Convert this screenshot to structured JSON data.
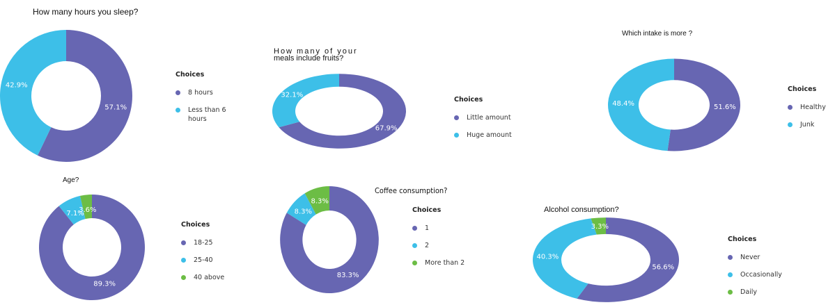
{
  "colors": {
    "purple": "#6766b2",
    "cyan": "#3dbfe8",
    "green": "#6cbd45"
  },
  "chart_data": [
    {
      "type": "pie",
      "title": "How many hours you sleep?",
      "legend_title": "Choices",
      "labels": [
        "8 hours",
        "Less than 6 hours"
      ],
      "values": [
        57.1,
        42.9
      ],
      "value_labels": [
        "57.1%",
        "42.9%"
      ],
      "colors": [
        "#6766b2",
        "#3dbfe8"
      ],
      "legend": "right"
    },
    {
      "type": "pie",
      "title": "How many of your",
      "title_line2": "meals include fruits?",
      "legend_title": "Choices",
      "labels": [
        "Little amount",
        "Huge amount"
      ],
      "values": [
        67.9,
        32.1
      ],
      "value_labels": [
        "67.9%",
        "32.1%"
      ],
      "colors": [
        "#6766b2",
        "#3dbfe8"
      ],
      "legend": "right"
    },
    {
      "type": "pie",
      "title": "Which intake is more ?",
      "legend_title": "Choices",
      "labels": [
        "Healthy",
        "Junk"
      ],
      "values": [
        51.6,
        48.4
      ],
      "value_labels": [
        "51.6%",
        "48.4%"
      ],
      "colors": [
        "#6766b2",
        "#3dbfe8"
      ],
      "legend": "right"
    },
    {
      "type": "pie",
      "title": "Age?",
      "legend_title": "Choices",
      "labels": [
        "18-25",
        "25-40",
        "40 above"
      ],
      "values": [
        89.3,
        7.1,
        3.6
      ],
      "value_labels": [
        "89.3%",
        "7.1%",
        "3.6%"
      ],
      "colors": [
        "#6766b2",
        "#3dbfe8",
        "#6cbd45"
      ],
      "legend": "right"
    },
    {
      "type": "pie",
      "title": "Coffee consumption?",
      "legend_title": "Choices",
      "labels": [
        "1",
        "2",
        "More than 2"
      ],
      "values": [
        83.3,
        8.3,
        8.3
      ],
      "value_labels": [
        "83.3%",
        "8.3%",
        "8.3%"
      ],
      "colors": [
        "#6766b2",
        "#3dbfe8",
        "#6cbd45"
      ],
      "legend": "right"
    },
    {
      "type": "pie",
      "title": "Alcohol consumption?",
      "legend_title": "Choices",
      "labels": [
        "Never",
        "Occasionally",
        "Daily"
      ],
      "values": [
        56.6,
        40.3,
        3.3
      ],
      "value_labels": [
        "56.6%",
        "40.3%",
        "3.3%"
      ],
      "colors": [
        "#6766b2",
        "#3dbfe8",
        "#6cbd45"
      ],
      "legend": "right"
    }
  ]
}
